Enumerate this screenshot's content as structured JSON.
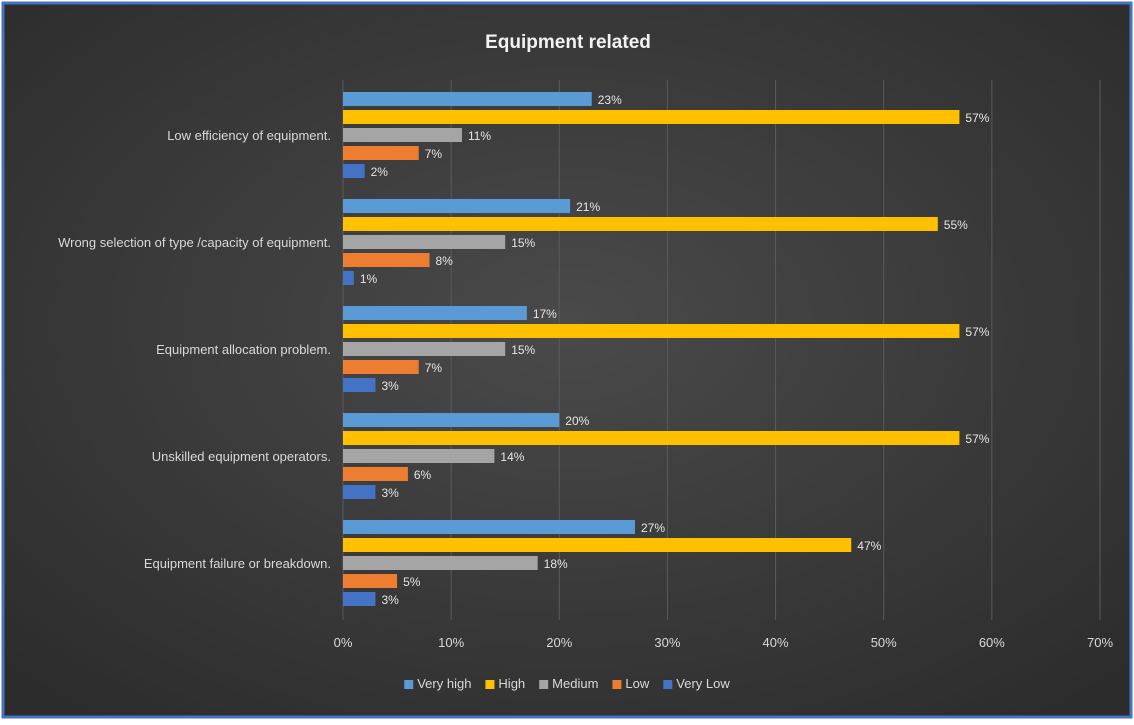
{
  "chart_data": {
    "type": "bar",
    "orientation": "horizontal",
    "title": "Equipment related",
    "categories": [
      "Low efficiency of equipment.",
      "Wrong selection of type /capacity of equipment.",
      "Equipment allocation problem.",
      "Unskilled equipment operators.",
      "Equipment failure or breakdown."
    ],
    "series": [
      {
        "name": "Very high",
        "color": "#5b9bd5",
        "values": [
          23,
          21,
          17,
          20,
          27
        ]
      },
      {
        "name": "High",
        "color": "#ffc000",
        "values": [
          57,
          55,
          57,
          57,
          47
        ]
      },
      {
        "name": "Medium",
        "color": "#a5a5a5",
        "values": [
          11,
          15,
          15,
          14,
          18
        ]
      },
      {
        "name": "Low",
        "color": "#ed7d31",
        "values": [
          7,
          8,
          7,
          6,
          5
        ]
      },
      {
        "name": "Very Low",
        "color": "#4472c4",
        "values": [
          2,
          1,
          3,
          3,
          3
        ]
      }
    ],
    "value_suffix": "%",
    "xlim": [
      0,
      70
    ],
    "x_ticks": [
      0,
      10,
      20,
      30,
      40,
      50,
      60,
      70
    ],
    "x_tick_labels": [
      "0%",
      "10%",
      "20%",
      "30%",
      "40%",
      "50%",
      "60%",
      "70%"
    ],
    "grid": true,
    "legend_position": "bottom",
    "background_color": "#3a3a3a",
    "frame_color": "#4472c4"
  }
}
